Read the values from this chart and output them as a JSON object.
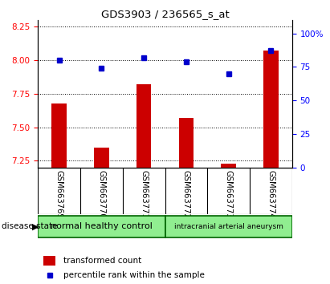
{
  "title": "GDS3903 / 236565_s_at",
  "samples": [
    "GSM663769",
    "GSM663770",
    "GSM663771",
    "GSM663772",
    "GSM663773",
    "GSM663774"
  ],
  "transformed_count": [
    7.68,
    7.35,
    7.82,
    7.57,
    7.23,
    8.07
  ],
  "percentile_rank": [
    80,
    74,
    82,
    79,
    70,
    87
  ],
  "ylim_left": [
    7.2,
    8.3
  ],
  "ylim_right": [
    0,
    110
  ],
  "yticks_left": [
    7.25,
    7.5,
    7.75,
    8.0,
    8.25
  ],
  "yticks_right": [
    0,
    25,
    50,
    75,
    100
  ],
  "group_labels": [
    "normal healthy control",
    "intracranial arterial aneurysm"
  ],
  "group_starts": [
    0,
    3
  ],
  "group_ends": [
    3,
    6
  ],
  "group_color": "#90EE90",
  "group_edge_color": "#006400",
  "bar_color": "#CC0000",
  "dot_color": "#0000CC",
  "bar_bottom": 7.2,
  "sample_bg_color": "#C8C8C8",
  "plot_bg": "#FFFFFF",
  "legend_bar_label": "transformed count",
  "legend_dot_label": "percentile rank within the sample",
  "disease_state_label": "disease state"
}
